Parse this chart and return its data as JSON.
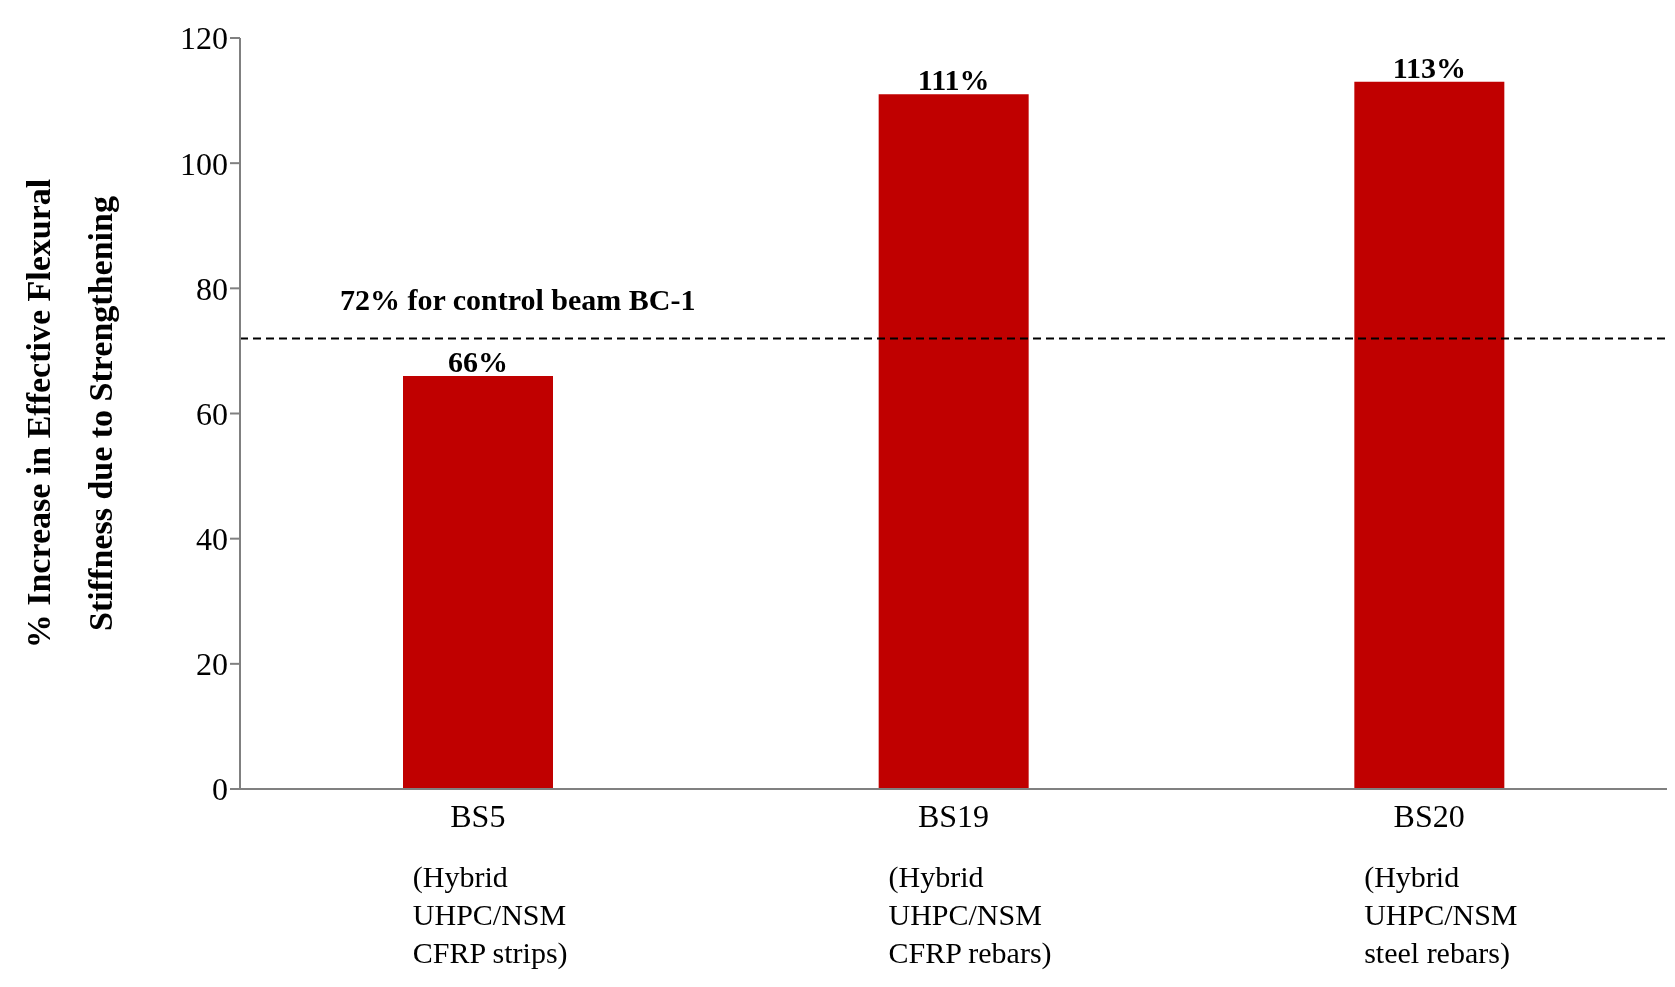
{
  "chart_data": {
    "type": "bar",
    "ylabel": "% Increase in Effective Flexural Stiffness due to Strengthening",
    "categories": [
      "BS5\n(Hybrid\nUHPC/NSM\nCFRP strips)",
      "BS19\n(Hybrid\nUHPC/NSM\nCFRP rebars)",
      "BS20\n(Hybrid\nUHPC/NSM\nsteel rebars)"
    ],
    "values": [
      66,
      111,
      113
    ],
    "value_labels": [
      "66%",
      "111%",
      "113%"
    ],
    "color": "#c00000",
    "ylim": [
      0,
      120
    ],
    "yticks": [
      0,
      20,
      40,
      60,
      80,
      100,
      120
    ],
    "grid": false,
    "legend": false,
    "ref_lines": [
      {
        "axis": "y",
        "value": 72,
        "label": "72% for control beam BC-1",
        "color": "#000000",
        "line_style": "dashed"
      }
    ]
  }
}
